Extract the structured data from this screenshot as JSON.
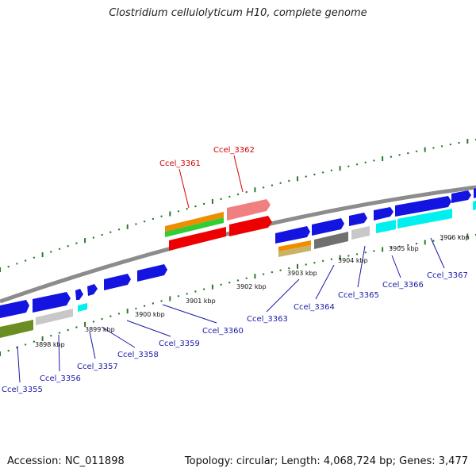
{
  "title": "Clostridium cellulolyticum H10, complete genome",
  "accession": "Accession: NC_011898",
  "topology": "Topology: circular; Length: 4,068,724 bp; Genes: 3,477",
  "colors": {
    "backbone": "#8c8c8c",
    "tick": "#2a7a2a",
    "forward_label": "#d40000",
    "reverse_label": "#1a1aa8",
    "cds_forward_blue": "#1414e0",
    "cds_cyan": "#00f0f0",
    "orange": "#f08c00",
    "green": "#33cc33",
    "red": "#ee0000",
    "pink": "#f08080",
    "grey_light": "#c8c8c8",
    "grey_dark": "#707070",
    "olive": "#6b8e23",
    "tan": "#c8b464"
  },
  "tick_labels": [
    "3898 kbp",
    "3899 kbp",
    "3900 kbp",
    "3901 kbp",
    "3902 kbp",
    "3903 kbp",
    "3904 kbp",
    "3905 kbp",
    "3906 kbp"
  ],
  "gene_labels_forward": [
    "Ccel_3361",
    "Ccel_3362"
  ],
  "gene_labels_reverse": [
    "Ccel_3355",
    "Ccel_3356",
    "Ccel_3357",
    "Ccel_3358",
    "Ccel_3359",
    "Ccel_3360",
    "Ccel_3363",
    "Ccel_3364",
    "Ccel_3365",
    "Ccel_3366",
    "Ccel_3367"
  ]
}
